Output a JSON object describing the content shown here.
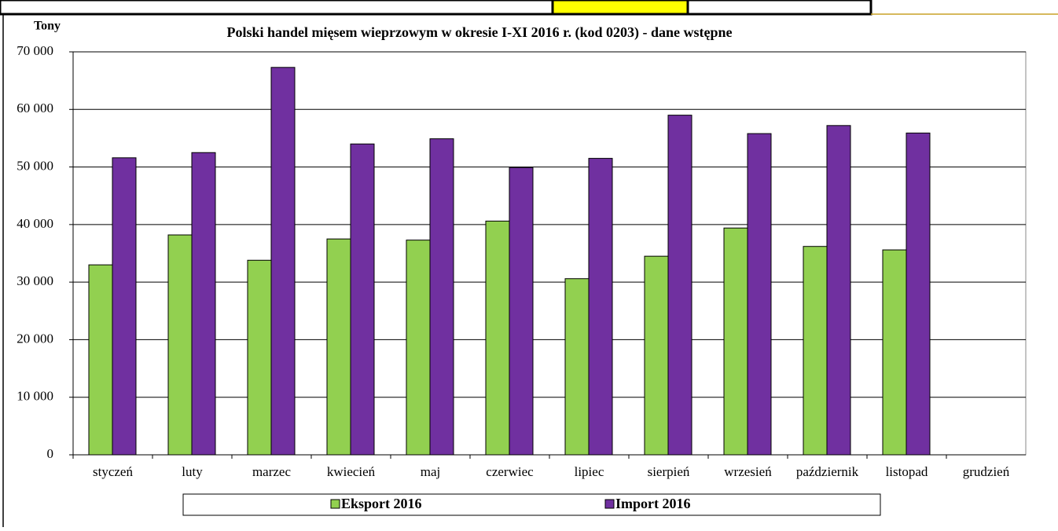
{
  "chart_data": {
    "type": "bar",
    "title": "Polski handel mięsem wieprzowym  w okresie I-XI 2016 r. (kod 0203) - dane wstępne",
    "y_label": "Tony",
    "categories": [
      "styczeń",
      "luty",
      "marzec",
      "kwiecień",
      "maj",
      "czerwiec",
      "lipiec",
      "sierpień",
      "wrzesień",
      "październik",
      "listopad",
      "grudzień"
    ],
    "series": [
      {
        "name": "Eksport 2016",
        "color": "#92d050",
        "values": [
          33000,
          38200,
          33800,
          37500,
          37300,
          40600,
          30600,
          34500,
          39400,
          36200,
          35600,
          null
        ]
      },
      {
        "name": "Import 2016",
        "color": "#7030a0",
        "values": [
          51600,
          52500,
          67300,
          54000,
          54900,
          49900,
          51500,
          59000,
          55800,
          57200,
          55900,
          null
        ]
      }
    ],
    "ylim": [
      0,
      70000
    ],
    "yticks": [
      0,
      {
        "value": 10000,
        "label": "10 000"
      },
      {
        "value": 20000,
        "label": "20 000"
      },
      {
        "value": 30000,
        "label": "30 000"
      },
      {
        "value": 40000,
        "label": "40 000"
      },
      {
        "value": 50000,
        "label": "50 000"
      },
      {
        "value": 60000,
        "label": "60 000"
      },
      {
        "value": 70000,
        "label": "70 000"
      }
    ],
    "grid": true
  }
}
